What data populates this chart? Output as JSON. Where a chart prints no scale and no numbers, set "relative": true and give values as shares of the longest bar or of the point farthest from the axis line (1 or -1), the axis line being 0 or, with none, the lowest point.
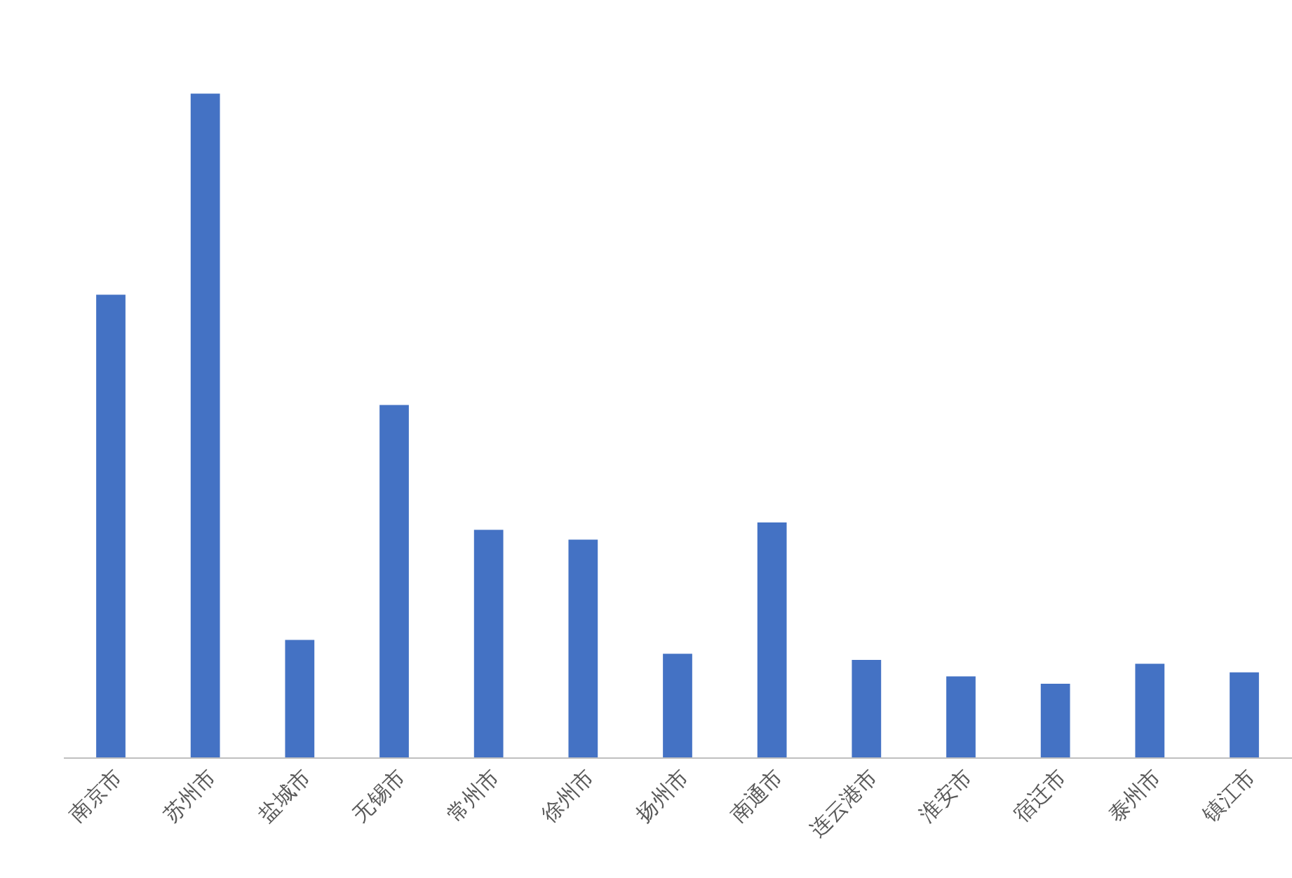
{
  "chart_data": {
    "type": "bar",
    "relative": true,
    "categories": [
      "南京市",
      "苏州市",
      "盐城市",
      "无锡市",
      "常州市",
      "徐州市",
      "扬州市",
      "南通市",
      "连云港市",
      "淮安市",
      "宿迁市",
      "泰州市",
      "镇江市"
    ],
    "values": [
      0.697,
      1,
      0.177,
      0.531,
      0.343,
      0.328,
      0.156,
      0.354,
      0.147,
      0.122,
      0.111,
      0.141,
      0.128
    ],
    "color": "#4472c4"
  }
}
